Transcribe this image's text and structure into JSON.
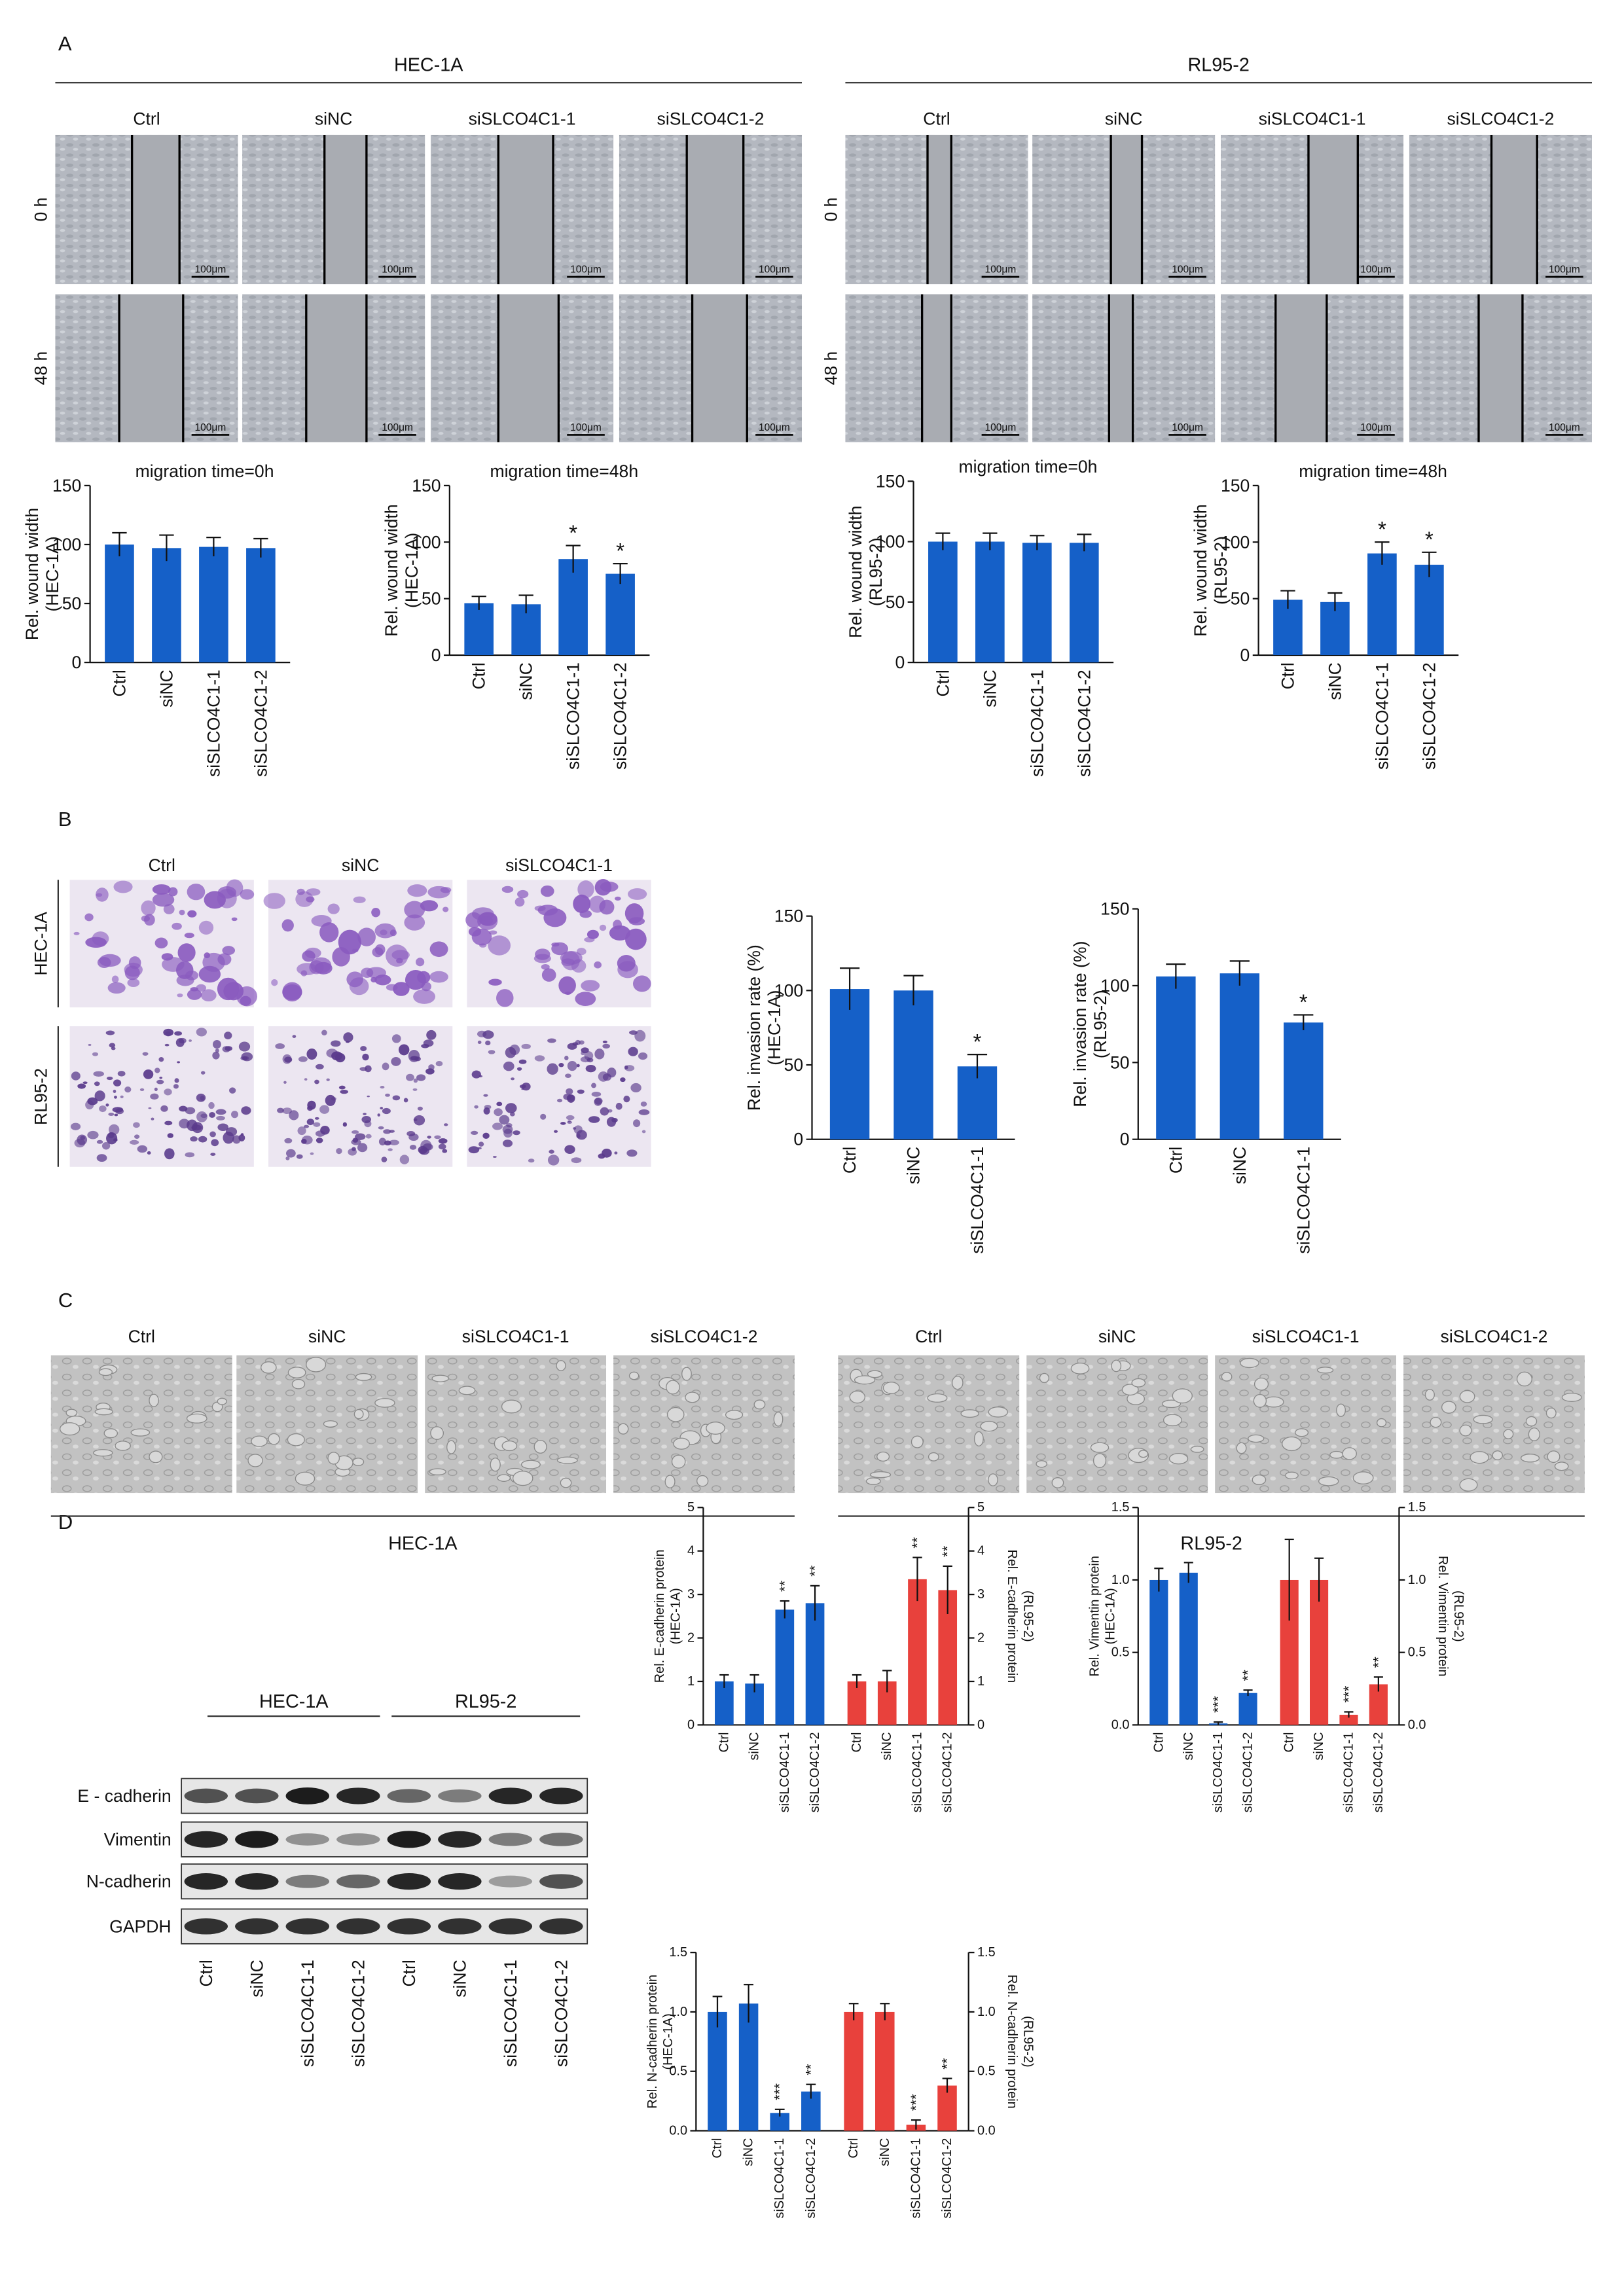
{
  "panel_a": {
    "label": "A",
    "cell_lines": [
      "HEC-1A",
      "RL95-2"
    ],
    "columns": [
      "Ctrl",
      "siNC",
      "siSLCO4C1-1",
      "siSLCO4C1-2"
    ],
    "rows": [
      "0 h",
      "48 h"
    ],
    "scale_bar": "100μm"
  },
  "panel_b": {
    "label": "B",
    "columns": [
      "Ctrl",
      "siNC",
      "siSLCO4C1-1"
    ],
    "rows": [
      "HEC-1A",
      "RL95-2"
    ]
  },
  "panel_c": {
    "label": "C",
    "columns": [
      "Ctrl",
      "siNC",
      "siSLCO4C1-1",
      "siSLCO4C1-2"
    ],
    "cell_lines": [
      "HEC-1A",
      "RL95-2"
    ]
  },
  "panel_d": {
    "label": "D",
    "cell_lines": [
      "HEC-1A",
      "RL95-2"
    ],
    "proteins": [
      "E - cadherin",
      "Vimentin",
      "N-cadherin",
      "GAPDH"
    ],
    "lanes": [
      "Ctrl",
      "siNC",
      "siSLCO4C1-1",
      "siSLCO4C1-2",
      "Ctrl",
      "siNC",
      "siSLCO4C1-1",
      "siSLCO4C1-2"
    ]
  },
  "chart_data": [
    {
      "type": "bar",
      "title": "migration time=0h",
      "y_label": [
        "Rel. wound width",
        "(HEC-1A)"
      ],
      "categories": [
        "Ctrl",
        "siNC",
        "siSLCO4C1-1",
        "siSLCO4C1-2"
      ],
      "values": [
        100,
        97,
        98,
        97
      ],
      "errors": [
        10,
        11,
        8,
        8
      ],
      "color": "#1560c8",
      "ylim": [
        0,
        150
      ],
      "yticks": [
        0,
        50,
        100,
        150
      ]
    },
    {
      "type": "bar",
      "title": "migration time=48h",
      "y_label": [
        "Rel. wound width",
        "(HEC-1A)"
      ],
      "categories": [
        "Ctrl",
        "siNC",
        "siSLCO4C1-1",
        "siSLCO4C1-2"
      ],
      "values": [
        46,
        45,
        85,
        72
      ],
      "errors": [
        6,
        8,
        12,
        9
      ],
      "annotations": [
        {
          "category": "siSLCO4C1-1",
          "label": "*"
        },
        {
          "category": "siSLCO4C1-2",
          "label": "*"
        }
      ],
      "color": "#1560c8",
      "ylim": [
        0,
        150
      ],
      "yticks": [
        0,
        50,
        100,
        150
      ]
    },
    {
      "type": "bar",
      "title": "migration time=0h",
      "y_label": [
        "Rel. wound width",
        "(RL95-2)"
      ],
      "categories": [
        "Ctrl",
        "siNC",
        "siSLCO4C1-1",
        "siSLCO4C1-2"
      ],
      "values": [
        100,
        100,
        99,
        99
      ],
      "errors": [
        7,
        7,
        6,
        7
      ],
      "color": "#1560c8",
      "ylim": [
        0,
        150
      ],
      "yticks": [
        0,
        50,
        100,
        150
      ]
    },
    {
      "type": "bar",
      "title": "migration time=48h",
      "y_label": [
        "Rel. wound width",
        "(RL95-2)"
      ],
      "categories": [
        "Ctrl",
        "siNC",
        "siSLCO4C1-1",
        "siSLCO4C1-2"
      ],
      "values": [
        49,
        47,
        90,
        80
      ],
      "errors": [
        8,
        8,
        10,
        11
      ],
      "annotations": [
        {
          "category": "siSLCO4C1-1",
          "label": "*"
        },
        {
          "category": "siSLCO4C1-2",
          "label": "*"
        }
      ],
      "color": "#1560c8",
      "ylim": [
        0,
        150
      ],
      "yticks": [
        0,
        50,
        100,
        150
      ]
    },
    {
      "type": "bar",
      "y_label": [
        "Rel. invasion rate (%)",
        "(HEC-1A)"
      ],
      "categories": [
        "Ctrl",
        "siNC",
        "siSLCO4C1-1"
      ],
      "values": [
        101,
        100,
        49
      ],
      "errors": [
        14,
        10,
        8
      ],
      "annotations": [
        {
          "category": "siSLCO4C1-1",
          "label": "*"
        }
      ],
      "color": "#1560c8",
      "ylim": [
        0,
        150
      ],
      "yticks": [
        0,
        50,
        100,
        150
      ]
    },
    {
      "type": "bar",
      "y_label": [
        "Rel. invasion rate (%)",
        "(RL95-2)"
      ],
      "categories": [
        "Ctrl",
        "siNC",
        "siSLCO4C1-1"
      ],
      "values": [
        106,
        108,
        76
      ],
      "errors": [
        8,
        8,
        5
      ],
      "annotations": [
        {
          "category": "siSLCO4C1-1",
          "label": "*"
        }
      ],
      "color": "#1560c8",
      "ylim": [
        0,
        150
      ],
      "yticks": [
        0,
        50,
        100,
        150
      ]
    },
    {
      "type": "bar",
      "y_label": [
        "Rel. E-cadherin protein",
        "(HEC-1A)"
      ],
      "y2_label": [
        "Rel. E-cadherin protein",
        "(RL95-2)"
      ],
      "categories": [
        "Ctrl",
        "siNC",
        "siSLCO4C1-1",
        "siSLCO4C1-2"
      ],
      "ylim": [
        0,
        5
      ],
      "yticks": [
        0,
        1,
        2,
        3,
        4,
        5
      ],
      "y2lim": [
        0,
        5
      ],
      "y2ticks": [
        0,
        1,
        2,
        3,
        4,
        5
      ],
      "series": [
        {
          "color": "#1560c8",
          "values": [
            1.0,
            0.95,
            2.65,
            2.8
          ],
          "errors": [
            0.15,
            0.2,
            0.2,
            0.4
          ],
          "annotations": [
            {
              "category": "siSLCO4C1-1",
              "label": "**"
            },
            {
              "category": "siSLCO4C1-2",
              "label": "**"
            }
          ]
        },
        {
          "color": "#e8413c",
          "axis": "y2",
          "values": [
            1.0,
            1.0,
            3.35,
            3.1
          ],
          "errors": [
            0.15,
            0.25,
            0.5,
            0.55
          ],
          "annotations": [
            {
              "category": "siSLCO4C1-1",
              "label": "**"
            },
            {
              "category": "siSLCO4C1-2",
              "label": "**"
            }
          ]
        }
      ]
    },
    {
      "type": "bar",
      "y_label": [
        "Rel. Vimentin protein",
        "(HEC-1A)"
      ],
      "y2_label": [
        "Rel. Vimentin protein",
        "(RL95-2)"
      ],
      "categories": [
        "Ctrl",
        "siNC",
        "siSLCO4C1-1",
        "siSLCO4C1-2"
      ],
      "ylim": [
        0,
        1.5
      ],
      "yticks": [
        {
          "value": 0,
          "label": "0.0"
        },
        0.5,
        {
          "value": 1,
          "label": "1.0"
        },
        1.5
      ],
      "y2lim": [
        0,
        1.5
      ],
      "y2ticks": [
        {
          "value": 0,
          "label": "0.0"
        },
        0.5,
        {
          "value": 1,
          "label": "1.0"
        },
        1.5
      ],
      "series": [
        {
          "color": "#1560c8",
          "values": [
            1.0,
            1.05,
            0.01,
            0.22
          ],
          "errors": [
            0.08,
            0.07,
            0.01,
            0.02
          ],
          "annotations": [
            {
              "category": "siSLCO4C1-1",
              "label": "***"
            },
            {
              "category": "siSLCO4C1-2",
              "label": "**"
            }
          ]
        },
        {
          "color": "#e8413c",
          "axis": "y2",
          "values": [
            1.0,
            1.0,
            0.07,
            0.28
          ],
          "errors": [
            0.28,
            0.15,
            0.02,
            0.05
          ],
          "annotations": [
            {
              "category": "siSLCO4C1-1",
              "label": "***"
            },
            {
              "category": "siSLCO4C1-2",
              "label": "**"
            }
          ]
        }
      ]
    },
    {
      "type": "bar",
      "y_label": [
        "Rel. N-cadherin protein",
        "(HEC-1A)"
      ],
      "y2_label": [
        "Rel. N-cadherin protein",
        "(RL95-2)"
      ],
      "categories": [
        "Ctrl",
        "siNC",
        "siSLCO4C1-1",
        "siSLCO4C1-2"
      ],
      "ylim": [
        0,
        1.5
      ],
      "yticks": [
        {
          "value": 0,
          "label": "0.0"
        },
        0.5,
        {
          "value": 1,
          "label": "1.0"
        },
        1.5
      ],
      "y2lim": [
        0,
        1.5
      ],
      "y2ticks": [
        {
          "value": 0,
          "label": "0.0"
        },
        0.5,
        {
          "value": 1,
          "label": "1.0"
        },
        1.5
      ],
      "series": [
        {
          "color": "#1560c8",
          "values": [
            1.0,
            1.07,
            0.15,
            0.33
          ],
          "errors": [
            0.13,
            0.16,
            0.03,
            0.06
          ],
          "annotations": [
            {
              "category": "siSLCO4C1-1",
              "label": "***"
            },
            {
              "category": "siSLCO4C1-2",
              "label": "**"
            }
          ]
        },
        {
          "color": "#e8413c",
          "axis": "y2",
          "values": [
            1.0,
            1.0,
            0.05,
            0.38
          ],
          "errors": [
            0.07,
            0.07,
            0.04,
            0.06
          ],
          "annotations": [
            {
              "category": "siSLCO4C1-1",
              "label": "***"
            },
            {
              "category": "siSLCO4C1-2",
              "label": "**"
            }
          ]
        }
      ]
    }
  ]
}
